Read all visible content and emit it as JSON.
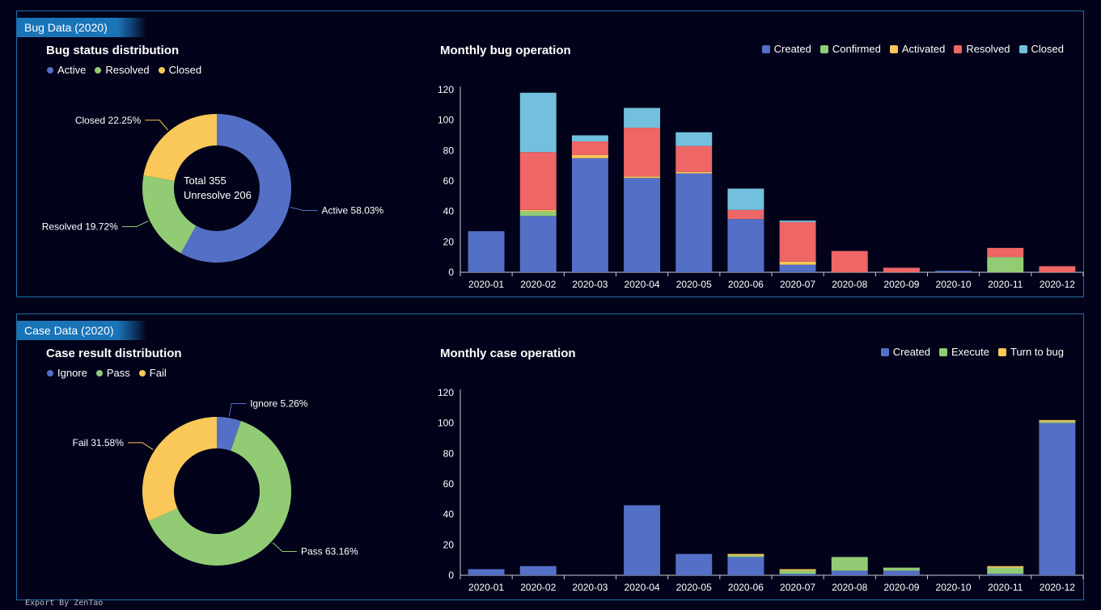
{
  "bug_section": {
    "tag": "Bug Data (2020)"
  },
  "case_section": {
    "tag": "Case Data (2020)"
  },
  "footer": "Export By ZenTao",
  "colors": {
    "blue": "#5470c6",
    "green": "#91cc75",
    "yellow": "#fac858",
    "red": "#ee6666",
    "cyan": "#73c0de"
  },
  "chart_data": [
    {
      "id": "bug_status",
      "type": "pie",
      "title": "Bug status distribution",
      "center_lines": [
        "Total   355",
        "Unresolve   206"
      ],
      "legend": [
        "Active",
        "Resolved",
        "Closed"
      ],
      "slices": [
        {
          "name": "Active",
          "value": 58.03,
          "label": "Active  58.03%",
          "color": "#5470c6"
        },
        {
          "name": "Resolved",
          "value": 19.72,
          "label": "Resolved  19.72%",
          "color": "#91cc75"
        },
        {
          "name": "Closed",
          "value": 22.25,
          "label": "Closed  22.25%",
          "color": "#fac858"
        }
      ]
    },
    {
      "id": "bug_monthly",
      "type": "bar",
      "stacked": true,
      "title": "Monthly bug operation",
      "categories": [
        "2020-01",
        "2020-02",
        "2020-03",
        "2020-04",
        "2020-05",
        "2020-06",
        "2020-07",
        "2020-08",
        "2020-09",
        "2020-10",
        "2020-11",
        "2020-12"
      ],
      "ylim": [
        0,
        120
      ],
      "yticks": [
        0,
        20,
        40,
        60,
        80,
        100,
        120
      ],
      "legend_position": "top-right",
      "series": [
        {
          "name": "Created",
          "color": "#5470c6",
          "values": [
            27,
            37,
            75,
            62,
            65,
            35,
            5,
            0,
            0,
            1,
            0,
            0
          ]
        },
        {
          "name": "Confirmed",
          "color": "#91cc75",
          "values": [
            0,
            3,
            0,
            0,
            0,
            0,
            0,
            0,
            0,
            0,
            10,
            0
          ]
        },
        {
          "name": "Activated",
          "color": "#fac858",
          "values": [
            0,
            1,
            2,
            1,
            1,
            0,
            2,
            0,
            0,
            0,
            0,
            0
          ]
        },
        {
          "name": "Resolved",
          "color": "#ee6666",
          "values": [
            0,
            38,
            9,
            32,
            17,
            6,
            26,
            14,
            3,
            0,
            6,
            4
          ]
        },
        {
          "name": "Closed",
          "color": "#73c0de",
          "values": [
            0,
            39,
            4,
            13,
            9,
            14,
            1,
            0,
            0,
            0,
            0,
            0
          ]
        }
      ]
    },
    {
      "id": "case_result",
      "type": "pie",
      "title": "Case result distribution",
      "legend": [
        "Ignore",
        "Pass",
        "Fail"
      ],
      "slices": [
        {
          "name": "Ignore",
          "value": 5.26,
          "label": "Ignore  5.26%",
          "color": "#5470c6"
        },
        {
          "name": "Pass",
          "value": 63.16,
          "label": "Pass  63.16%",
          "color": "#91cc75"
        },
        {
          "name": "Fail",
          "value": 31.58,
          "label": "Fail  31.58%",
          "color": "#fac858"
        }
      ]
    },
    {
      "id": "case_monthly",
      "type": "bar",
      "stacked": true,
      "title": "Monthly case operation",
      "categories": [
        "2020-01",
        "2020-02",
        "2020-03",
        "2020-04",
        "2020-05",
        "2020-06",
        "2020-07",
        "2020-08",
        "2020-09",
        "2020-10",
        "2020-11",
        "2020-12"
      ],
      "ylim": [
        0,
        120
      ],
      "yticks": [
        0,
        20,
        40,
        60,
        80,
        100,
        120
      ],
      "legend_position": "top-right",
      "series": [
        {
          "name": "Created",
          "color": "#5470c6",
          "values": [
            4,
            6,
            0,
            46,
            14,
            12,
            1,
            3,
            3,
            0,
            1,
            100
          ]
        },
        {
          "name": "Execute",
          "color": "#91cc75",
          "values": [
            0,
            0,
            0,
            0,
            0,
            1,
            2,
            9,
            2,
            0,
            4,
            1
          ]
        },
        {
          "name": "Turn to bug",
          "color": "#fac858",
          "values": [
            0,
            0,
            0,
            0,
            0,
            1,
            1,
            0,
            0,
            0,
            1,
            1
          ]
        }
      ]
    }
  ]
}
